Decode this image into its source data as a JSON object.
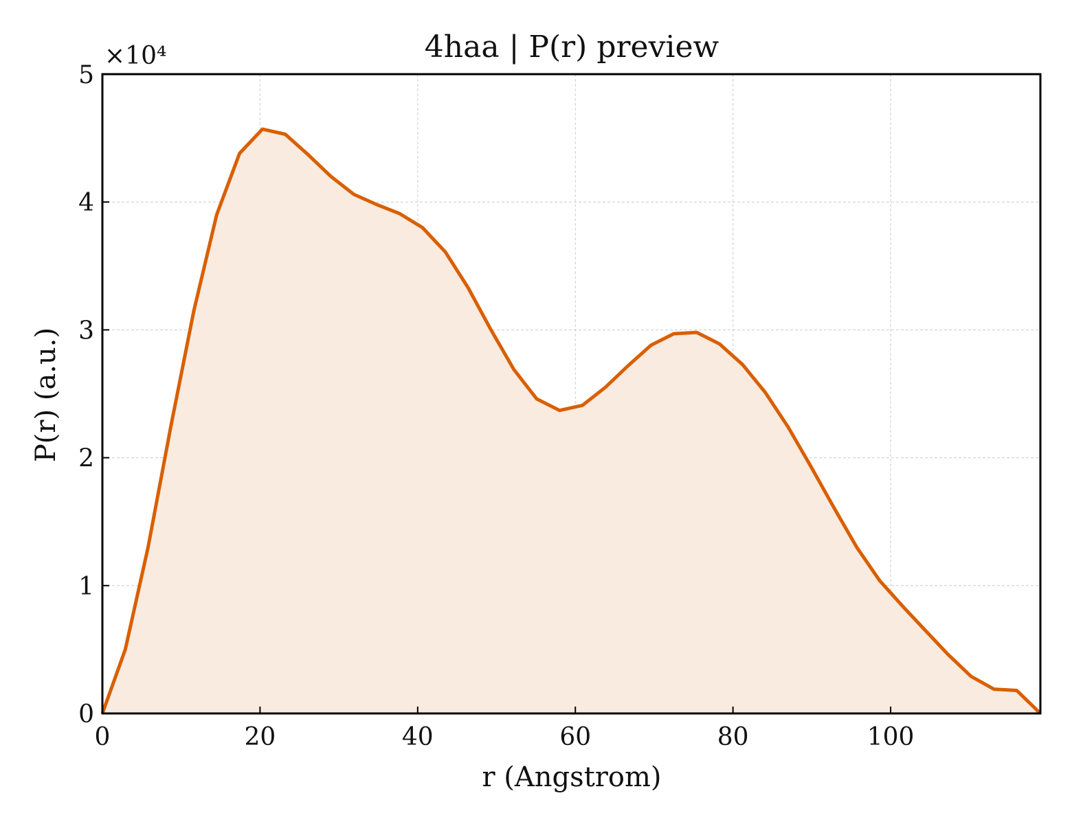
{
  "chart_data": {
    "type": "area",
    "title": "4haa | P(r) preview",
    "xlabel": "r (Angstrom)",
    "ylabel": "P(r) (a.u.)",
    "y_multiplier_label": "×10⁴",
    "xlim": [
      0,
      119
    ],
    "ylim": [
      0,
      50000
    ],
    "x_ticks": [
      0,
      20,
      40,
      60,
      80,
      100
    ],
    "y_ticks": [
      0,
      10000,
      20000,
      30000,
      40000,
      50000
    ],
    "y_tick_labels": [
      "0",
      "1",
      "2",
      "3",
      "4",
      "5"
    ],
    "grid": true,
    "legend": "none",
    "line_color": "#d95f02",
    "fill_color": "#f9ebe0",
    "series": [
      {
        "x": [
          0,
          2.9,
          5.8,
          8.7,
          11.6,
          14.5,
          17.4,
          20.3,
          23.2,
          26.1,
          29.0,
          31.9,
          34.8,
          37.7,
          40.6,
          43.5,
          46.4,
          49.3,
          52.2,
          55.1,
          58.0,
          60.9,
          63.8,
          66.7,
          69.6,
          72.5,
          75.4,
          78.3,
          81.2,
          84.1,
          87.0,
          89.9,
          92.8,
          95.7,
          98.6,
          101.5,
          104.4,
          107.3,
          110.2,
          113.1,
          116.0,
          119.0
        ],
        "y": [
          0,
          5000,
          13000,
          22500,
          31500,
          39000,
          43800,
          45700,
          45300,
          43700,
          42000,
          40600,
          39800,
          39100,
          38000,
          36100,
          33300,
          30000,
          26900,
          24600,
          23700,
          24100,
          25500,
          27200,
          28800,
          29700,
          29800,
          28900,
          27300,
          25100,
          22400,
          19300,
          16100,
          13000,
          10400,
          8400,
          6500,
          4600,
          2900,
          1900,
          1800,
          0
        ]
      }
    ]
  }
}
